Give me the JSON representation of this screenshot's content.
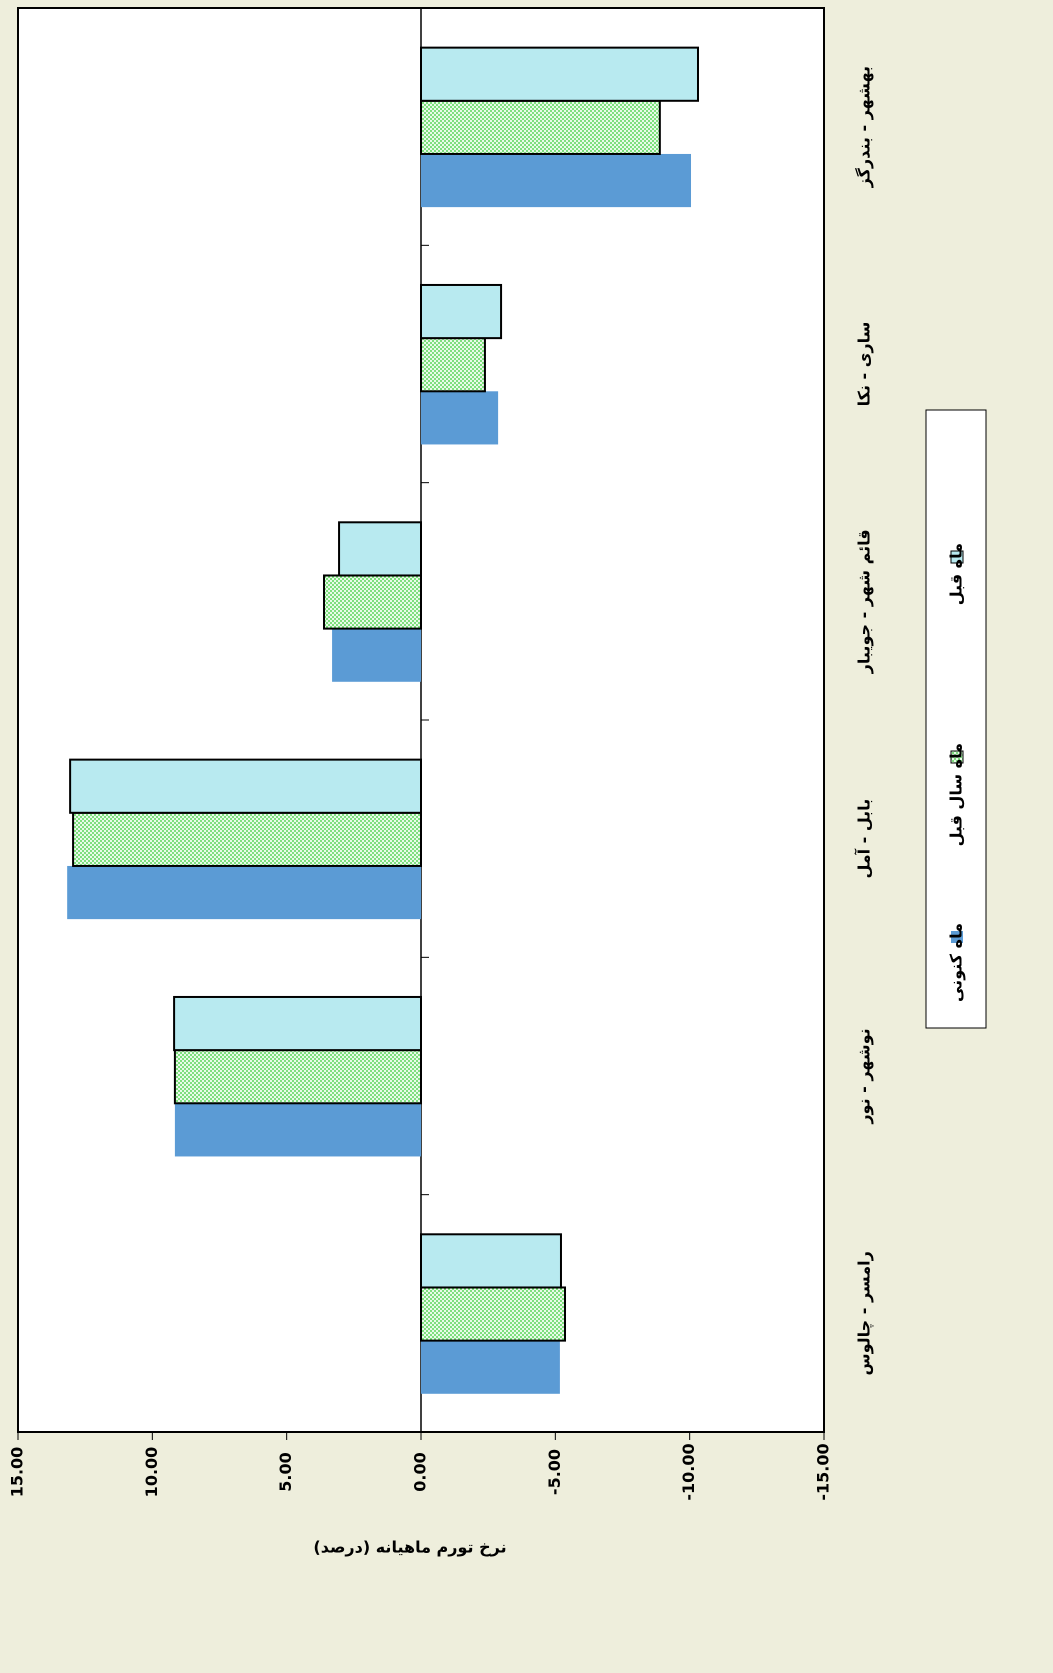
{
  "chart_data": {
    "type": "bar",
    "orientation": "horizontal",
    "y_label": "نرخ تورم ماهیانه (درصد)",
    "categories": [
      "رامسر - چالوس",
      "نوشهر - نور",
      "بابل - آمل",
      "قائم شهر - جویبار",
      "ساری - نکا",
      "بهشهر - بندرگز"
    ],
    "series": [
      {
        "name": "ماه کنونی",
        "color": "#5b9bd5",
        "values": [
          -5.17,
          9.16,
          13.17,
          3.31,
          -2.87,
          -10.05
        ]
      },
      {
        "name": "ماه سال قبل",
        "color": "#66dd66",
        "values": [
          -5.36,
          9.16,
          12.95,
          3.61,
          -2.38,
          -8.89
        ]
      },
      {
        "name": "ماه قبل",
        "color": "#b8eaf0",
        "values": [
          -5.21,
          9.19,
          13.06,
          3.05,
          -2.98,
          -10.31
        ]
      }
    ],
    "ylim": [
      15,
      -15
    ],
    "yticks": [
      {
        "value": 15,
        "label": "15.00"
      },
      {
        "value": 10,
        "label": "10.00"
      },
      {
        "value": 5,
        "label": "5.00"
      },
      {
        "value": 0,
        "label": "0.00"
      },
      {
        "value": -5,
        "label": "-5.00"
      },
      {
        "value": -10,
        "label": "-10.00"
      },
      {
        "value": -15,
        "label": "-15.00"
      }
    ],
    "grid": false
  }
}
